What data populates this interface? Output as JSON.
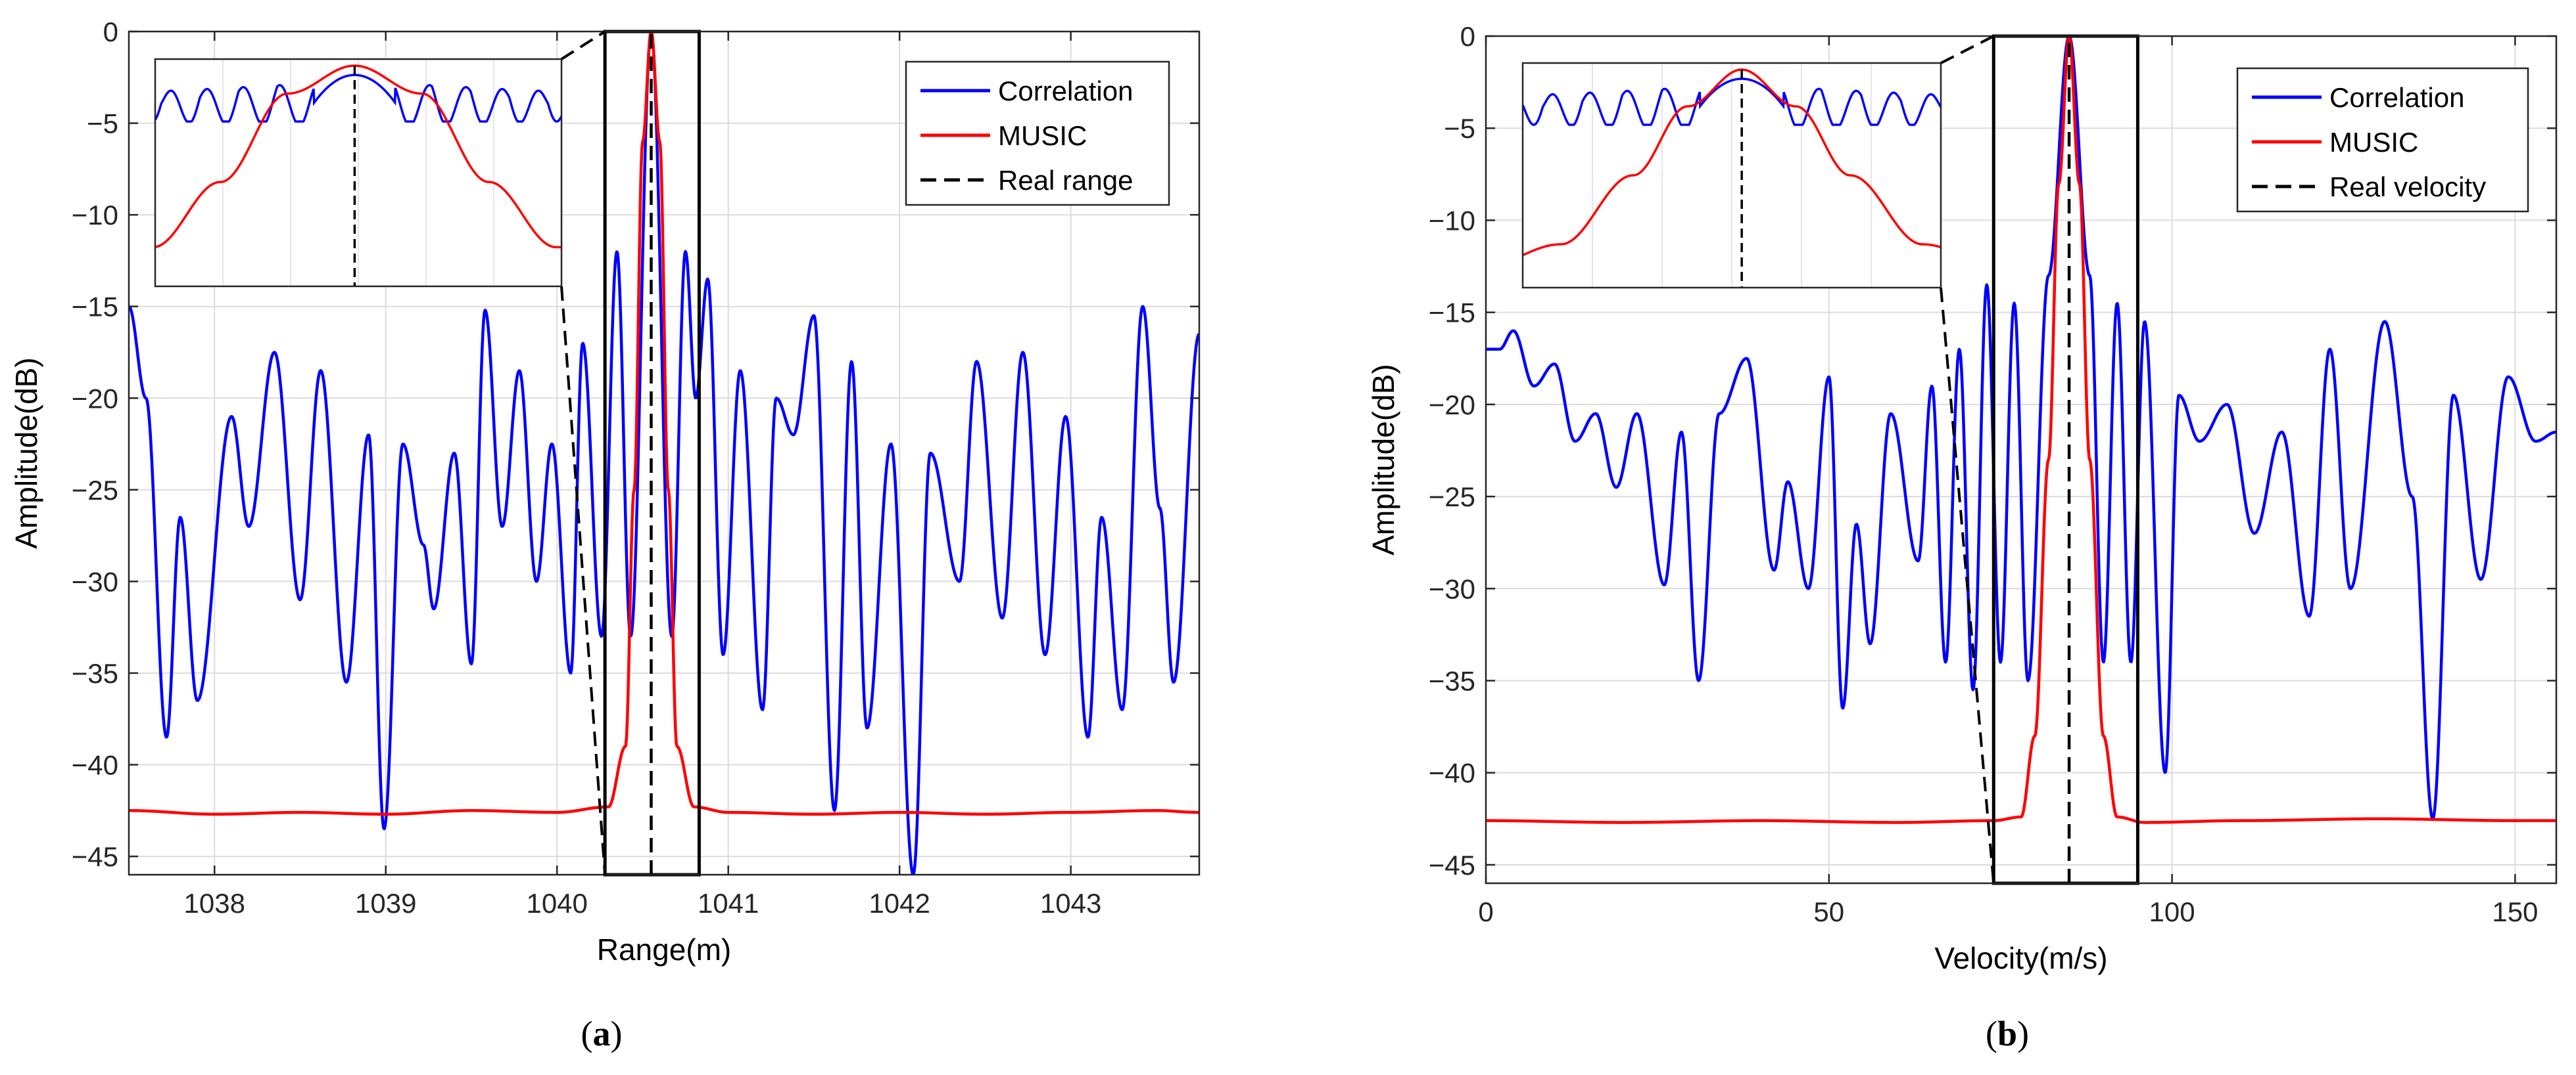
{
  "chart_data": [
    {
      "type": "line",
      "panel_label": "(a)",
      "label_letter": "a",
      "xlabel": "Range(m)",
      "ylabel": "Amplitude(dB)",
      "xlim": [
        1037.5,
        1043.75
      ],
      "ylim": [
        -46,
        0
      ],
      "xticks": [
        1038,
        1039,
        1040,
        1041,
        1042,
        1043
      ],
      "yticks": [
        0,
        -5,
        -10,
        -15,
        -20,
        -25,
        -30,
        -35,
        -40,
        -45
      ],
      "grid": true,
      "legend_position": "top-right",
      "true_value": 1040.55,
      "zoom_range": [
        1040.28,
        1040.83
      ],
      "inset": {
        "position": "top-left",
        "x_range": [
          1040.28,
          1040.83
        ]
      },
      "series": [
        {
          "name": "Correlation",
          "color": "#0000ff",
          "style": "solid",
          "x": [
            1037.5,
            1037.6,
            1037.72,
            1037.8,
            1037.9,
            1038.1,
            1038.2,
            1038.35,
            1038.5,
            1038.62,
            1038.77,
            1038.9,
            1038.99,
            1039.1,
            1039.22,
            1039.28,
            1039.4,
            1039.5,
            1039.58,
            1039.68,
            1039.78,
            1039.88,
            1039.97,
            1040.08,
            1040.15,
            1040.26,
            1040.35,
            1040.43,
            1040.55,
            1040.67,
            1040.75,
            1040.81,
            1040.88,
            1040.97,
            1041.07,
            1041.2,
            1041.28,
            1041.38,
            1041.5,
            1041.62,
            1041.72,
            1041.81,
            1041.95,
            1042.08,
            1042.18,
            1042.35,
            1042.45,
            1042.6,
            1042.72,
            1042.85,
            1042.97,
            1043.1,
            1043.18,
            1043.3,
            1043.42,
            1043.52,
            1043.6,
            1043.75
          ],
          "y": [
            -15,
            -20,
            -38.5,
            -26.5,
            -36.5,
            -21,
            -27,
            -17.5,
            -31,
            -18.5,
            -35.5,
            -22,
            -43.5,
            -22.5,
            -28,
            -31.5,
            -23,
            -34.5,
            -15.2,
            -27,
            -18.5,
            -30,
            -22.5,
            -35,
            -17,
            -33,
            -12,
            -33,
            0,
            -33,
            -12,
            -20,
            -13.5,
            -34,
            -18.5,
            -37,
            -20,
            -22,
            -15.5,
            -42.5,
            -18,
            -38,
            -22.5,
            -46,
            -23,
            -30,
            -18,
            -32,
            -17.5,
            -34,
            -21,
            -38.5,
            -26.5,
            -37,
            -15,
            -26,
            -35.5,
            -16.5
          ]
        },
        {
          "name": "MUSIC",
          "color": "#ff0000",
          "style": "solid",
          "x": [
            1037.5,
            1038.0,
            1038.5,
            1039.0,
            1039.5,
            1040.0,
            1040.3,
            1040.4,
            1040.45,
            1040.5,
            1040.55,
            1040.6,
            1040.65,
            1040.7,
            1040.8,
            1041.0,
            1041.5,
            1042.0,
            1042.5,
            1043.0,
            1043.5,
            1043.75
          ],
          "y": [
            -42.5,
            -42.7,
            -42.6,
            -42.7,
            -42.5,
            -42.6,
            -42.3,
            -39,
            -25,
            -6,
            0,
            -6,
            -25,
            -39,
            -42.3,
            -42.6,
            -42.7,
            -42.6,
            -42.7,
            -42.6,
            -42.5,
            -42.6
          ]
        },
        {
          "name": "Real range",
          "color": "#000000",
          "style": "dashed",
          "x": [
            1040.55,
            1040.55
          ],
          "y": [
            -46,
            0
          ]
        }
      ]
    },
    {
      "type": "line",
      "panel_label": "(b)",
      "label_letter": "b",
      "xlabel": "Velocity(m/s)",
      "ylabel": "Amplitude(dB)",
      "xlim": [
        0,
        156
      ],
      "ylim": [
        -46,
        0
      ],
      "xticks": [
        0,
        50,
        100,
        150
      ],
      "yticks": [
        0,
        -5,
        -10,
        -15,
        -20,
        -25,
        -30,
        -35,
        -40,
        -45
      ],
      "grid": true,
      "legend_position": "top-right",
      "true_value": 85,
      "zoom_range": [
        74,
        95
      ],
      "inset": {
        "position": "top-left",
        "x_range": [
          74,
          95
        ]
      },
      "series": [
        {
          "name": "Correlation",
          "color": "#0000ff",
          "style": "solid",
          "x": [
            0,
            2,
            4,
            7,
            10,
            13,
            16,
            19,
            22,
            26,
            28.5,
            31,
            34,
            38,
            42,
            44,
            47,
            50,
            52,
            54,
            56,
            59,
            63,
            65,
            67,
            69,
            71,
            73,
            75,
            77,
            79,
            82,
            85,
            88,
            90,
            92,
            94,
            96,
            99,
            101,
            104,
            108,
            112,
            116,
            120,
            123,
            126,
            131,
            135,
            138,
            141,
            145,
            149,
            153,
            156
          ],
          "y": [
            -17,
            -17,
            -16,
            -19,
            -17.8,
            -22,
            -20.5,
            -24.5,
            -20.5,
            -29.8,
            -21.5,
            -35,
            -20.5,
            -17.5,
            -29,
            -24.2,
            -30,
            -18.5,
            -36.5,
            -26.5,
            -33,
            -20.5,
            -28.5,
            -19,
            -34,
            -17,
            -35.5,
            -13.5,
            -34,
            -14.5,
            -35,
            -13,
            0,
            -13,
            -34,
            -14.5,
            -34,
            -15.5,
            -40,
            -19.5,
            -22,
            -20,
            -27,
            -21.5,
            -31.5,
            -17,
            -30,
            -15.5,
            -25,
            -42.5,
            -19.5,
            -29.5,
            -18.5,
            -22,
            -21.5
          ]
        },
        {
          "name": "MUSIC",
          "color": "#ff0000",
          "style": "solid",
          "x": [
            0,
            20,
            40,
            60,
            74,
            78,
            80,
            82,
            83.5,
            85,
            86.5,
            88,
            90,
            92,
            96,
            110,
            130,
            150,
            156
          ],
          "y": [
            -42.6,
            -42.7,
            -42.6,
            -42.7,
            -42.6,
            -42.4,
            -38,
            -23,
            -8,
            0,
            -8,
            -23,
            -38,
            -42.4,
            -42.7,
            -42.6,
            -42.5,
            -42.6,
            -42.6
          ]
        },
        {
          "name": "Real velocity",
          "color": "#000000",
          "style": "dashed",
          "x": [
            85,
            85
          ],
          "y": [
            -46,
            0
          ]
        }
      ]
    }
  ]
}
